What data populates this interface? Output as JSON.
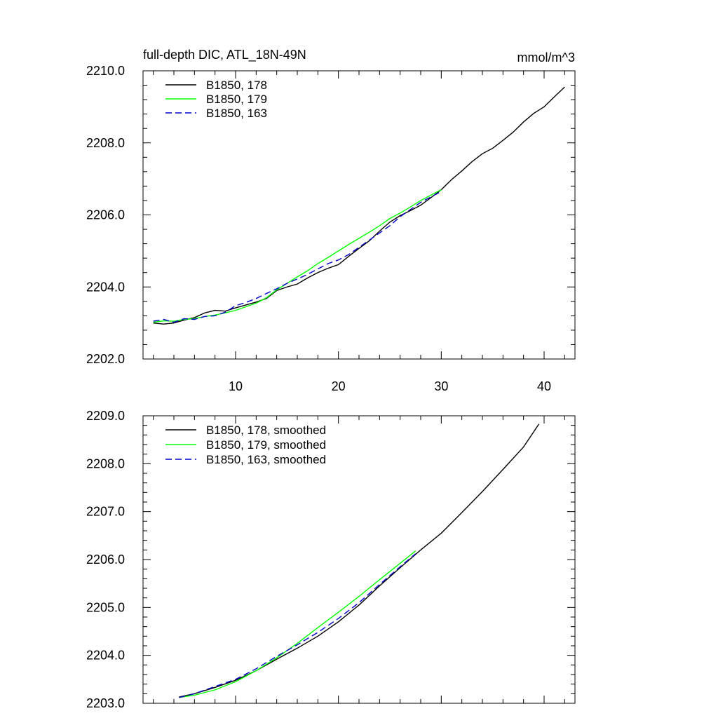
{
  "chart_data": [
    {
      "type": "line",
      "title": "full-depth DIC, ATL_18N-49N",
      "units": "mmol/m^3",
      "xlim": [
        1,
        43
      ],
      "ylim": [
        2202.0,
        2210.0
      ],
      "x_major_ticks": [
        10,
        20,
        30,
        40
      ],
      "x_minor_step": 2,
      "x_tick_labels": [
        "10",
        "20",
        "30",
        "40"
      ],
      "y_major_ticks": [
        2202.0,
        2204.0,
        2206.0,
        2208.0,
        2210.0
      ],
      "y_minor_step": 0.4,
      "y_tick_labels": [
        "2202.0",
        "2204.0",
        "2206.0",
        "2208.0",
        "2210.0"
      ],
      "legend_position": "top-left",
      "series": [
        {
          "name": "B1850, 178",
          "color": "#000000",
          "dash": "solid",
          "x": [
            2,
            3,
            4,
            5,
            6,
            7,
            8,
            9,
            10,
            11,
            12,
            13,
            14,
            15,
            16,
            17,
            18,
            19,
            20,
            21,
            22,
            23,
            24,
            25,
            26,
            27,
            28,
            29,
            30,
            31,
            32,
            33,
            34,
            35,
            36,
            37,
            38,
            39,
            40,
            41,
            42
          ],
          "y": [
            2203.0,
            2202.97,
            2203.0,
            2203.08,
            2203.15,
            2203.28,
            2203.35,
            2203.33,
            2203.42,
            2203.5,
            2203.58,
            2203.68,
            2203.9,
            2204.0,
            2204.08,
            2204.25,
            2204.4,
            2204.52,
            2204.62,
            2204.85,
            2205.07,
            2205.28,
            2205.55,
            2205.8,
            2205.98,
            2206.12,
            2206.27,
            2206.48,
            2206.7,
            2206.98,
            2207.22,
            2207.48,
            2207.7,
            2207.85,
            2208.07,
            2208.3,
            2208.58,
            2208.82,
            2209.0,
            2209.28,
            2209.55
          ]
        },
        {
          "name": "B1850, 179",
          "color": "#00ff00",
          "dash": "solid",
          "x": [
            2,
            3,
            4,
            5,
            6,
            7,
            8,
            9,
            10,
            11,
            12,
            13,
            14,
            15,
            16,
            17,
            18,
            19,
            20,
            21,
            22,
            23,
            24,
            25,
            26,
            27,
            28,
            29,
            30
          ],
          "y": [
            2203.02,
            2203.06,
            2203.05,
            2203.1,
            2203.12,
            2203.18,
            2203.22,
            2203.28,
            2203.35,
            2203.45,
            2203.55,
            2203.7,
            2203.92,
            2204.1,
            2204.28,
            2204.45,
            2204.65,
            2204.82,
            2205.0,
            2205.18,
            2205.35,
            2205.52,
            2205.7,
            2205.9,
            2206.05,
            2206.22,
            2206.4,
            2206.55,
            2206.7
          ]
        },
        {
          "name": "B1850, 163",
          "color": "#0000cc",
          "dash": "dashed",
          "x": [
            2,
            3,
            4,
            5,
            6,
            7,
            8,
            9,
            10,
            11,
            12,
            13,
            14,
            15,
            16,
            17,
            18,
            19,
            20,
            21,
            22,
            23,
            24,
            25,
            26,
            27,
            28,
            29,
            30
          ],
          "y": [
            2203.05,
            2203.1,
            2203.02,
            2203.12,
            2203.1,
            2203.18,
            2203.2,
            2203.3,
            2203.48,
            2203.57,
            2203.68,
            2203.82,
            2203.95,
            2204.1,
            2204.22,
            2204.35,
            2204.5,
            2204.65,
            2204.75,
            2204.9,
            2205.1,
            2205.3,
            2205.5,
            2205.7,
            2205.95,
            2206.15,
            2206.35,
            2206.5,
            2206.65
          ]
        }
      ]
    },
    {
      "type": "line",
      "xlim": [
        1,
        43
      ],
      "ylim": [
        2203.0,
        2209.0
      ],
      "x_major_ticks": [
        10,
        20,
        30,
        40
      ],
      "x_minor_step": 2,
      "y_major_ticks": [
        2203.0,
        2204.0,
        2205.0,
        2206.0,
        2207.0,
        2208.0,
        2209.0
      ],
      "y_minor_step": 0.2,
      "y_tick_labels": [
        "2203.0",
        "2204.0",
        "2205.0",
        "2206.0",
        "2207.0",
        "2208.0",
        "2209.0"
      ],
      "legend_position": "top-left",
      "series": [
        {
          "name": "B1850, 178, smoothed",
          "color": "#000000",
          "dash": "solid",
          "x": [
            4.5,
            6,
            8,
            10,
            12,
            14,
            16,
            18,
            20,
            22,
            24,
            26,
            28,
            30,
            32,
            34,
            36,
            38,
            39.5
          ],
          "y": [
            2203.13,
            2203.2,
            2203.33,
            2203.48,
            2203.68,
            2203.92,
            2204.15,
            2204.4,
            2204.7,
            2205.05,
            2205.45,
            2205.83,
            2206.2,
            2206.55,
            2206.98,
            2207.42,
            2207.88,
            2208.35,
            2208.83
          ]
        },
        {
          "name": "B1850, 179, smoothed",
          "color": "#00ff00",
          "dash": "solid",
          "x": [
            4.5,
            6,
            8,
            10,
            12,
            14,
            16,
            18,
            20,
            22,
            24,
            26,
            27.5
          ],
          "y": [
            2203.12,
            2203.17,
            2203.28,
            2203.45,
            2203.68,
            2203.95,
            2204.25,
            2204.58,
            2204.9,
            2205.23,
            2205.58,
            2205.92,
            2206.18
          ]
        },
        {
          "name": "B1850, 163, smoothed",
          "color": "#0000cc",
          "dash": "dashed",
          "x": [
            4.5,
            6,
            8,
            10,
            12,
            14,
            16,
            18,
            20,
            22,
            24,
            26,
            27.5
          ],
          "y": [
            2203.12,
            2203.2,
            2203.35,
            2203.5,
            2203.72,
            2203.98,
            2204.22,
            2204.48,
            2204.77,
            2205.1,
            2205.48,
            2205.85,
            2206.12
          ]
        }
      ]
    }
  ]
}
